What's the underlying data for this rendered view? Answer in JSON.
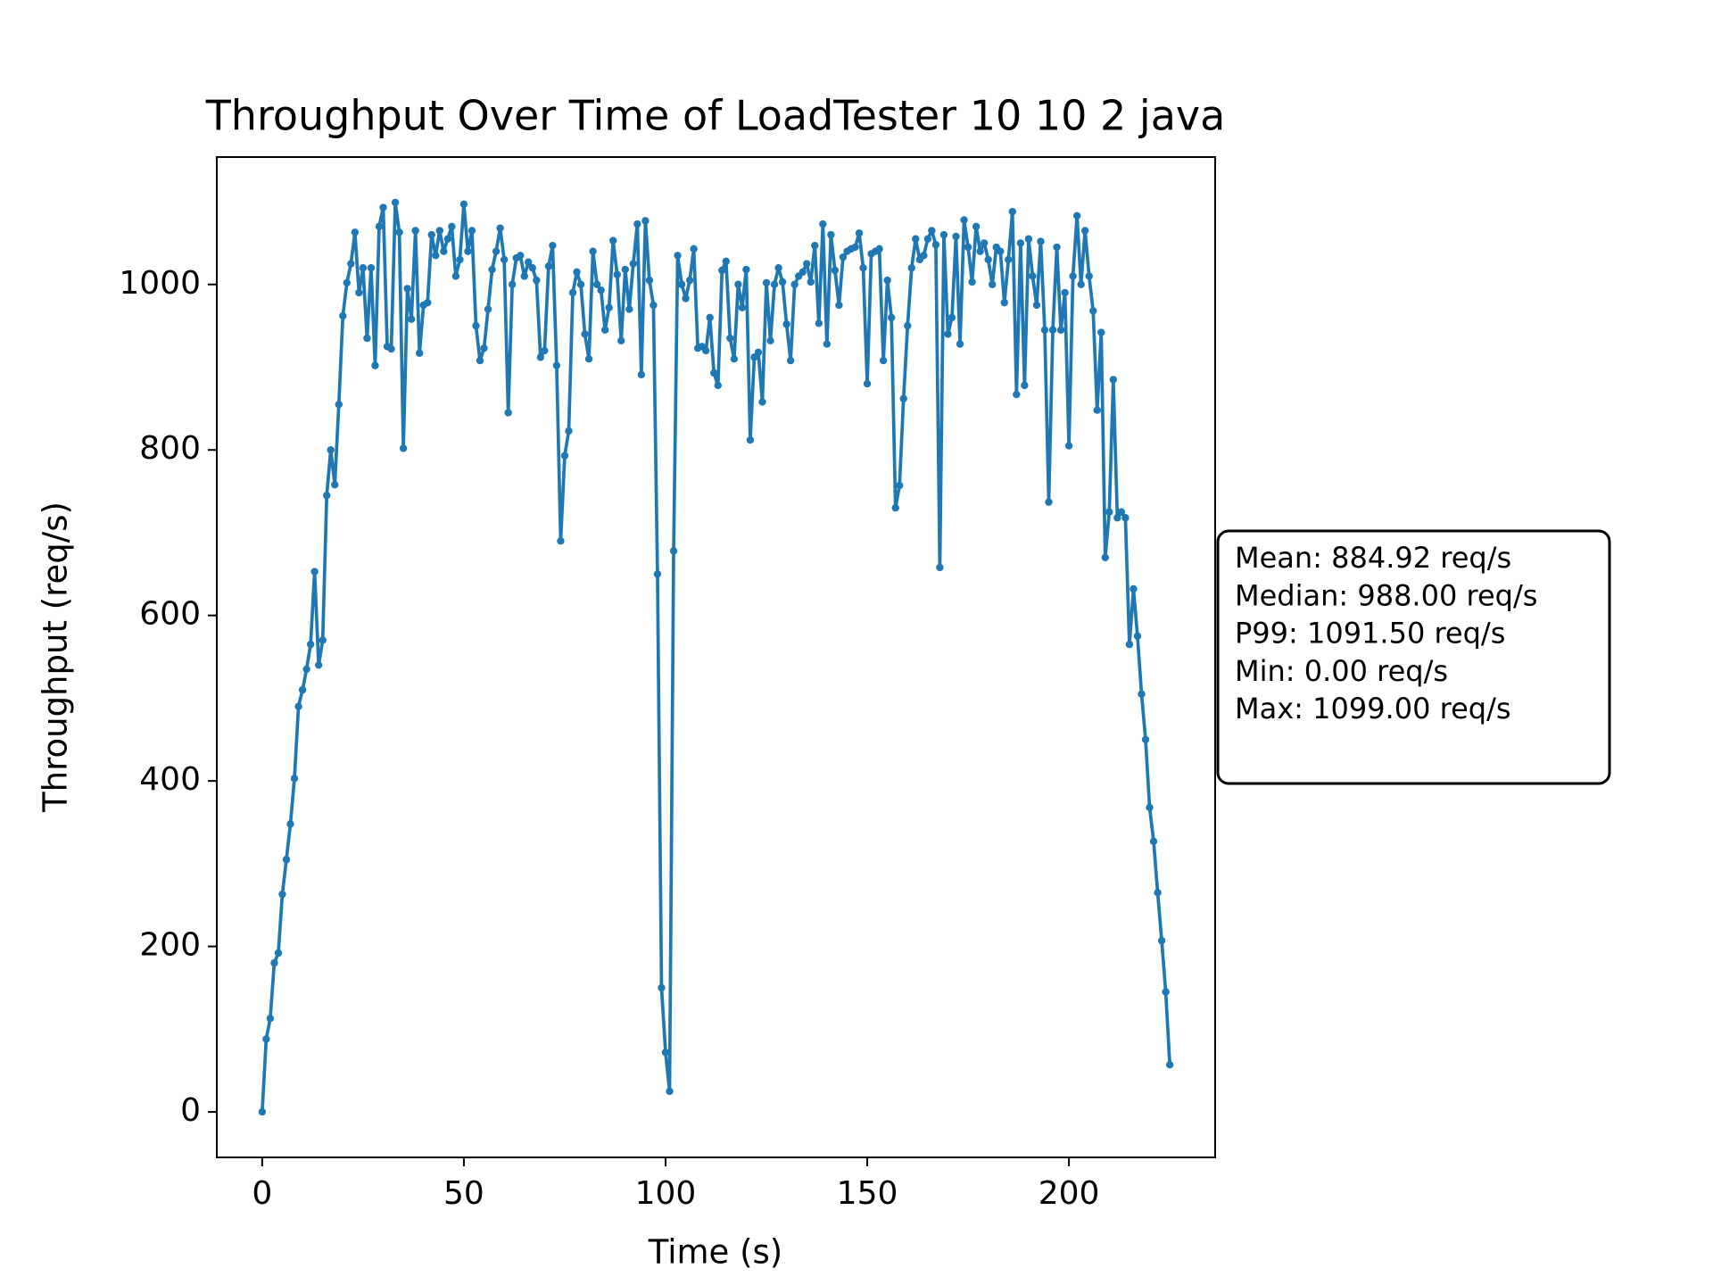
{
  "chart_data": {
    "type": "line",
    "title": "Throughput Over Time of LoadTester 10 10 2 java",
    "x_label": "Time (s)",
    "y_label": "Throughput (req/s)",
    "stats": [
      "Mean: 884.92 req/s",
      "Median: 988.00 req/s",
      "P99: 1091.50 req/s",
      "Min: 0.00 req/s",
      "Max: 1099.00 req/s"
    ],
    "color": "#1f77b4",
    "xlim": [
      -11.25,
      236.25
    ],
    "xticks": [
      0,
      50,
      100,
      150,
      200
    ],
    "ylim": [
      -54.95,
      1153.95
    ],
    "yticks": [
      0,
      200,
      400,
      600,
      800,
      1000
    ],
    "x": [
      0,
      1,
      2,
      3,
      4,
      5,
      6,
      7,
      8,
      9,
      10,
      11,
      12,
      13,
      14,
      15,
      16,
      17,
      18,
      19,
      20,
      21,
      22,
      23,
      24,
      25,
      26,
      27,
      28,
      29,
      30,
      31,
      32,
      33,
      34,
      35,
      36,
      37,
      38,
      39,
      40,
      41,
      42,
      43,
      44,
      45,
      46,
      47,
      48,
      49,
      50,
      51,
      52,
      53,
      54,
      55,
      56,
      57,
      58,
      59,
      60,
      61,
      62,
      63,
      64,
      65,
      66,
      67,
      68,
      69,
      70,
      71,
      72,
      73,
      74,
      75,
      76,
      77,
      78,
      79,
      80,
      81,
      82,
      83,
      84,
      85,
      86,
      87,
      88,
      89,
      90,
      91,
      92,
      93,
      94,
      95,
      96,
      97,
      98,
      99,
      100,
      101,
      102,
      103,
      104,
      105,
      106,
      107,
      108,
      109,
      110,
      111,
      112,
      113,
      114,
      115,
      116,
      117,
      118,
      119,
      120,
      121,
      122,
      123,
      124,
      125,
      126,
      127,
      128,
      129,
      130,
      131,
      132,
      133,
      134,
      135,
      136,
      137,
      138,
      139,
      140,
      141,
      142,
      143,
      144,
      145,
      146,
      147,
      148,
      149,
      150,
      151,
      152,
      153,
      154,
      155,
      156,
      157,
      158,
      159,
      160,
      161,
      162,
      163,
      164,
      165,
      166,
      167,
      168,
      169,
      170,
      171,
      172,
      173,
      174,
      175,
      176,
      177,
      178,
      179,
      180,
      181,
      182,
      183,
      184,
      185,
      186,
      187,
      188,
      189,
      190,
      191,
      192,
      193,
      194,
      195,
      196,
      197,
      198,
      199,
      200,
      201,
      202,
      203,
      204,
      205,
      206,
      207,
      208,
      209,
      210,
      211,
      212,
      213,
      214,
      215,
      216,
      217,
      218,
      219,
      220,
      221,
      222,
      223,
      224,
      225
    ],
    "values": [
      0,
      88,
      113,
      180,
      192,
      263,
      305,
      348,
      403,
      490,
      510,
      535,
      565,
      653,
      540,
      570,
      745,
      800,
      758,
      855,
      962,
      1002,
      1025,
      1063,
      990,
      1020,
      935,
      1020,
      902,
      1070,
      1093,
      925,
      922,
      1099,
      1063,
      802,
      995,
      958,
      1065,
      917,
      975,
      978,
      1060,
      1035,
      1065,
      1040,
      1055,
      1070,
      1010,
      1030,
      1097,
      1040,
      1065,
      950,
      908,
      923,
      970,
      1018,
      1040,
      1068,
      1030,
      845,
      1000,
      1032,
      1035,
      1010,
      1027,
      1020,
      1005,
      912,
      920,
      1022,
      1047,
      902,
      690,
      793,
      823,
      990,
      1015,
      1000,
      940,
      910,
      1040,
      1000,
      993,
      945,
      972,
      1053,
      1012,
      932,
      1018,
      970,
      1025,
      1073,
      891,
      1077,
      1005,
      975,
      650,
      150,
      72,
      25,
      678,
      1035,
      1000,
      983,
      1005,
      1043,
      923,
      925,
      920,
      960,
      893,
      878,
      1017,
      1028,
      935,
      910,
      1000,
      972,
      1018,
      812,
      912,
      918,
      858,
      1002,
      932,
      1000,
      1020,
      1003,
      952,
      908,
      1000,
      1010,
      1015,
      1025,
      1003,
      1047,
      953,
      1073,
      928,
      1060,
      1017,
      975,
      1033,
      1040,
      1043,
      1045,
      1062,
      1020,
      880,
      1037,
      1040,
      1043,
      908,
      1005,
      960,
      730,
      757,
      862,
      950,
      1020,
      1055,
      1030,
      1035,
      1055,
      1065,
      1048,
      658,
      1060,
      940,
      960,
      1058,
      928,
      1078,
      1045,
      1003,
      1070,
      1040,
      1050,
      1030,
      1000,
      1045,
      1040,
      978,
      1030,
      1088,
      867,
      1050,
      878,
      1055,
      1010,
      975,
      1052,
      945,
      737,
      945,
      1045,
      945,
      990,
      805,
      1010,
      1083,
      1000,
      1065,
      1010,
      968,
      848,
      942,
      670,
      725,
      885,
      718,
      725,
      718,
      565,
      632,
      575,
      505,
      450,
      368,
      327,
      265,
      207,
      145,
      57
    ]
  }
}
